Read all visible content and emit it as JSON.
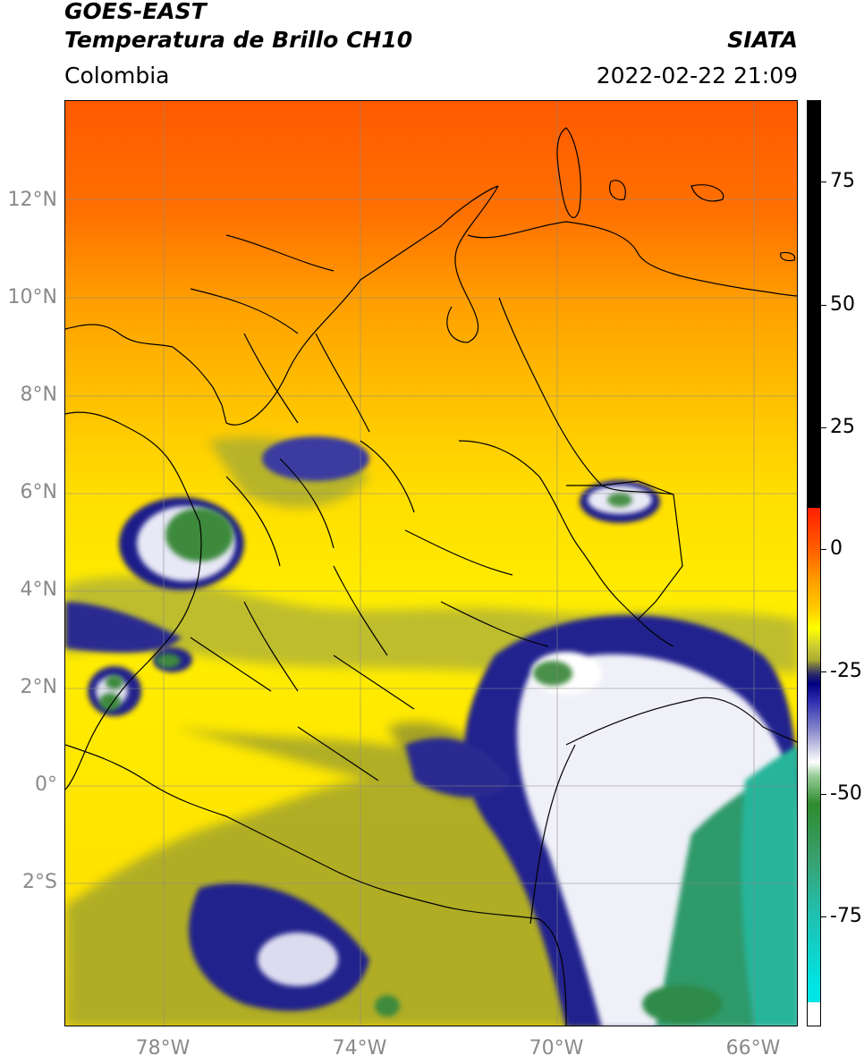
{
  "header": {
    "title_line1": "GOES-EAST",
    "title_line2": "Temperatura de Brillo CH10",
    "subtitle": "Colombia",
    "source": "SIATA",
    "timestamp": "2022-02-22 21:09"
  },
  "axes": {
    "lat_labels": [
      "12°N",
      "10°N",
      "8°N",
      "6°N",
      "4°N",
      "2°N",
      "0°",
      "2°S"
    ],
    "lon_labels": [
      "78°W",
      "74°W",
      "70°W",
      "66°W"
    ]
  },
  "colorbar": {
    "labels": [
      "75",
      "50",
      "25",
      "0",
      "-25",
      "-50",
      "-75"
    ],
    "unit": ""
  },
  "colors": {
    "warm_ocean": "#ff6a00",
    "dry_land": "#ffd000",
    "mid_cloud": "#b5b52a",
    "deep_cloud": "#1a1a8c",
    "cold_top": "#ffffff",
    "coldest": "#2e8b57"
  }
}
